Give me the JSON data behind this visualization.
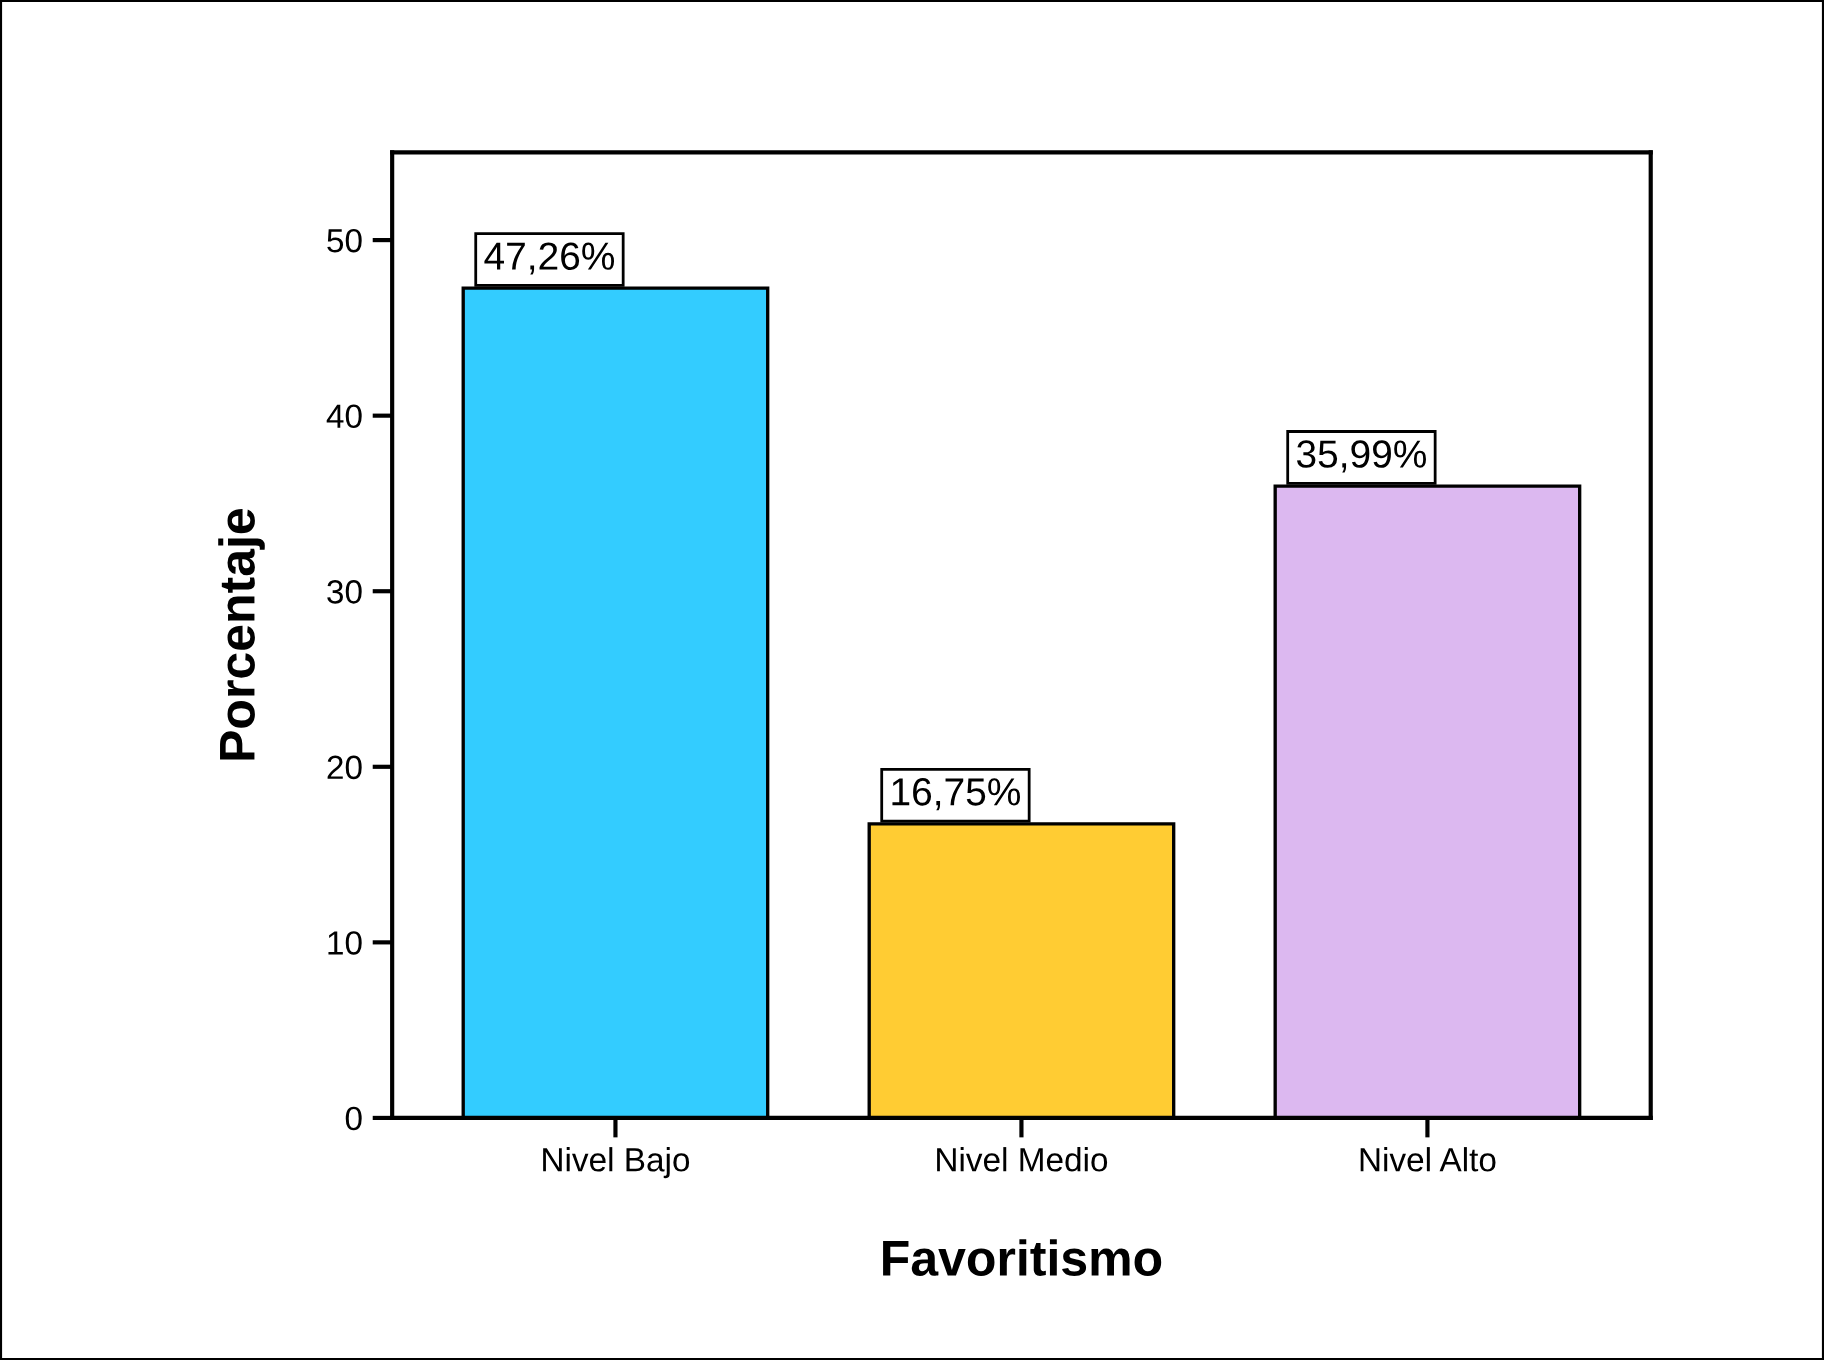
{
  "chart_data": {
    "type": "bar",
    "xlabel": "Favoritismo",
    "ylabel": "Porcentaje",
    "categories": [
      "Nivel Bajo",
      "Nivel Medio",
      "Nivel Alto"
    ],
    "values": [
      47.26,
      16.75,
      35.99
    ],
    "colors": [
      "#33ccff",
      "#ffcc33",
      "#dcb8f0"
    ],
    "value_labels": [
      "47,26%",
      "16,75%",
      "35,99%"
    ],
    "ylim": [
      0,
      55
    ],
    "yticks": [
      0,
      10,
      20,
      30,
      40,
      50
    ],
    "grid": false
  }
}
